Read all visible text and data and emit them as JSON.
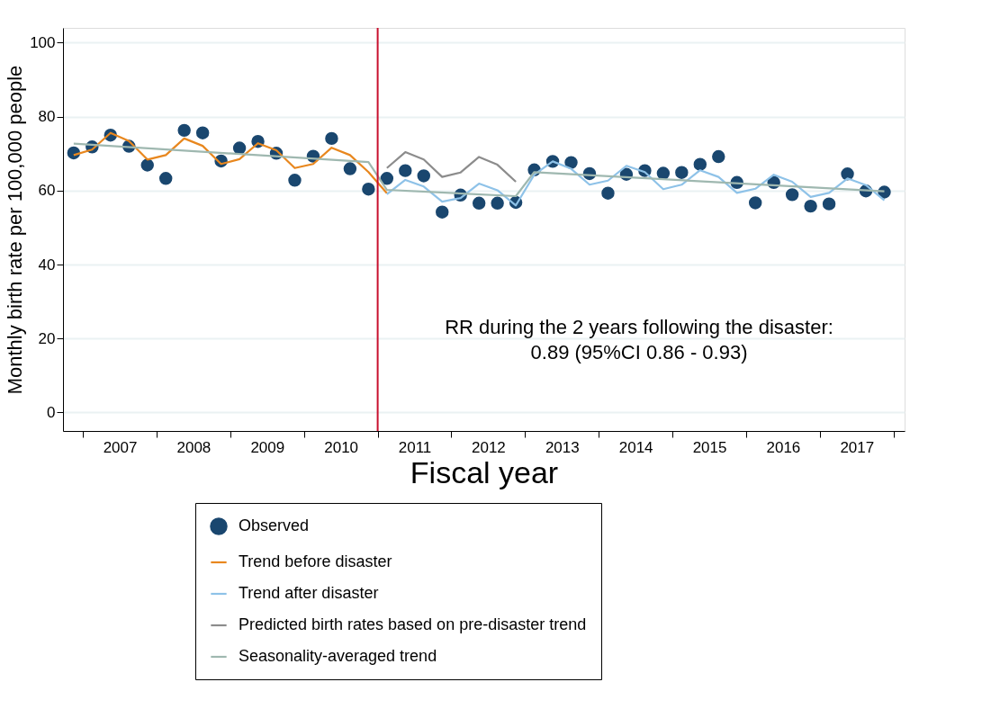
{
  "chart_data": {
    "type": "line",
    "xlabel": "Fiscal year",
    "ylabel": "Monthly birth rate per 100,000 people",
    "xlim": [
      2006.23,
      2017.65
    ],
    "xticks": [
      {
        "value": 2006.5,
        "label": null
      },
      2007,
      {
        "value": 2007.5,
        "label": null
      },
      2008,
      {
        "value": 2008.5,
        "label": null
      },
      2009,
      {
        "value": 2009.5,
        "label": null
      },
      2010,
      {
        "value": 2010.5,
        "label": null
      },
      2011,
      {
        "value": 2011.5,
        "label": null
      },
      2012,
      {
        "value": 2012.5,
        "label": null
      },
      2013,
      {
        "value": 2013.5,
        "label": null
      },
      2014,
      {
        "value": 2014.5,
        "label": null
      },
      2015,
      {
        "value": 2015.5,
        "label": null
      },
      2016,
      {
        "value": 2016.5,
        "label": null
      },
      2017,
      {
        "value": 2017.5,
        "label": null
      }
    ],
    "ylim": [
      -5,
      104
    ],
    "yticks": [
      0,
      20,
      40,
      60,
      80,
      100
    ],
    "grid": "y",
    "legend": "bottom",
    "ref_lines": [
      {
        "axis": "x",
        "value": 2010.5,
        "color": "#c8102e"
      }
    ],
    "annotations": [
      "RR during the 2 years following the disaster:",
      "0.89 (95%CI 0.86 - 0.93)"
    ],
    "series": [
      {
        "name": "Observed",
        "type": "scatter",
        "marker": "circle",
        "color": "#1a476f",
        "x": [
          2006.375,
          2006.625,
          2006.875,
          2007.125,
          2007.375,
          2007.625,
          2007.875,
          2008.125,
          2008.375,
          2008.625,
          2008.875,
          2009.125,
          2009.375,
          2009.625,
          2009.875,
          2010.125,
          2010.375,
          2010.625,
          2010.875,
          2011.125,
          2011.375,
          2011.625,
          2011.875,
          2012.125,
          2012.375,
          2012.625,
          2012.875,
          2013.125,
          2013.375,
          2013.625,
          2013.875,
          2014.125,
          2014.375,
          2014.625,
          2014.875,
          2015.125,
          2015.375,
          2015.625,
          2015.875,
          2016.125,
          2016.375,
          2016.625,
          2016.875,
          2017.125,
          2017.375
        ],
        "values": [
          70.2,
          71.8,
          75.0,
          72.0,
          66.9,
          63.3,
          76.3,
          75.6,
          68.0,
          71.5,
          73.3,
          70.1,
          62.8,
          69.3,
          74.1,
          65.9,
          60.4,
          63.3,
          65.4,
          64.0,
          54.2,
          58.8,
          56.6,
          56.6,
          56.8,
          65.6,
          67.9,
          67.6,
          64.6,
          59.3,
          64.4,
          65.4,
          64.7,
          64.9,
          67.1,
          69.2,
          62.2,
          56.7,
          62.2,
          58.9,
          55.8,
          56.4,
          64.5,
          59.9,
          59.6
        ]
      },
      {
        "name": "Trend before disaster",
        "type": "line",
        "color": "#e8871e",
        "x": [
          2006.375,
          2006.625,
          2006.875,
          2007.125,
          2007.375,
          2007.625,
          2007.875,
          2008.125,
          2008.375,
          2008.625,
          2008.875,
          2009.125,
          2009.375,
          2009.625,
          2009.875,
          2010.125,
          2010.375,
          2010.625
        ],
        "values": [
          69.6,
          71.1,
          75.6,
          73.4,
          68.4,
          69.6,
          74.1,
          72.1,
          67.2,
          68.5,
          72.8,
          70.9,
          66.1,
          67.2,
          71.6,
          69.6,
          65.0,
          59.3
        ]
      },
      {
        "name": "Trend after disaster",
        "type": "line",
        "color": "#8ec2e8",
        "x": [
          2010.625,
          2010.875,
          2011.125,
          2011.375,
          2011.625,
          2011.875,
          2012.125,
          2012.375,
          2012.625,
          2012.875,
          2013.125,
          2013.375,
          2013.625,
          2013.875,
          2014.125,
          2014.375,
          2014.625,
          2014.875,
          2015.125,
          2015.375,
          2015.625,
          2015.875,
          2016.125,
          2016.375,
          2016.625,
          2016.875,
          2017.125,
          2017.375
        ],
        "values": [
          59.0,
          62.9,
          61.1,
          57.0,
          58.0,
          61.9,
          60.1,
          56.0,
          64.3,
          67.9,
          65.9,
          61.6,
          62.7,
          66.7,
          65.0,
          60.4,
          61.6,
          65.5,
          63.7,
          59.4,
          60.5,
          64.3,
          62.4,
          58.3,
          59.4,
          63.3,
          61.5,
          57.4
        ]
      },
      {
        "name": "Predicted birth rates based on pre-disaster trend",
        "type": "line",
        "color": "#8c8c8c",
        "x": [
          2010.625,
          2010.875,
          2011.125,
          2011.375,
          2011.625,
          2011.875,
          2012.125,
          2012.375
        ],
        "values": [
          66.1,
          70.4,
          68.4,
          63.7,
          64.9,
          69.1,
          67.0,
          62.4
        ]
      },
      {
        "name": "Seasonality-averaged trend",
        "type": "line",
        "color": "#9fb8b0",
        "x": [
          2006.375,
          2010.375,
          2010.625,
          2012.375,
          2012.625,
          2017.375
        ],
        "values": [
          72.7,
          67.7,
          60.2,
          58.5,
          65.0,
          59.8
        ]
      }
    ]
  }
}
